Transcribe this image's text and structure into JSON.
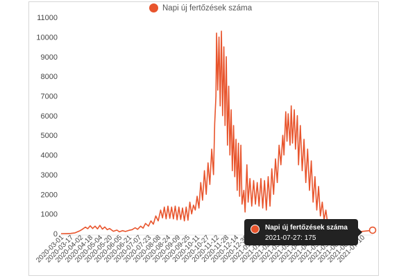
{
  "chart_data": {
    "type": "line",
    "legend": "top",
    "grid": false,
    "series": [
      {
        "name": "Napi új fertőzések száma",
        "color": "#e8542c",
        "points": [
          [
            "2020-03-01",
            0
          ],
          [
            "2020-03-10",
            5
          ],
          [
            "2020-03-17",
            10
          ],
          [
            "2020-03-24",
            40
          ],
          [
            "2020-03-31",
            130
          ],
          [
            "2020-04-04",
            200
          ],
          [
            "2020-04-10",
            330
          ],
          [
            "2020-04-14",
            250
          ],
          [
            "2020-04-18",
            400
          ],
          [
            "2020-04-22",
            260
          ],
          [
            "2020-04-26",
            380
          ],
          [
            "2020-04-30",
            240
          ],
          [
            "2020-05-04",
            420
          ],
          [
            "2020-05-08",
            230
          ],
          [
            "2020-05-12",
            340
          ],
          [
            "2020-05-16",
            200
          ],
          [
            "2020-05-20",
            260
          ],
          [
            "2020-05-26",
            120
          ],
          [
            "2020-06-01",
            180
          ],
          [
            "2020-06-05",
            90
          ],
          [
            "2020-06-10",
            150
          ],
          [
            "2020-06-15",
            110
          ],
          [
            "2020-06-21",
            170
          ],
          [
            "2020-06-26",
            200
          ],
          [
            "2020-07-01",
            300
          ],
          [
            "2020-07-05",
            220
          ],
          [
            "2020-07-10",
            380
          ],
          [
            "2020-07-14",
            280
          ],
          [
            "2020-07-18",
            520
          ],
          [
            "2020-07-23",
            380
          ],
          [
            "2020-07-27",
            650
          ],
          [
            "2020-07-31",
            480
          ],
          [
            "2020-08-04",
            900
          ],
          [
            "2020-08-08",
            650
          ],
          [
            "2020-08-12",
            1200
          ],
          [
            "2020-08-15",
            800
          ],
          [
            "2020-08-18",
            1350
          ],
          [
            "2020-08-21",
            750
          ],
          [
            "2020-08-24",
            1400
          ],
          [
            "2020-08-27",
            780
          ],
          [
            "2020-08-30",
            1350
          ],
          [
            "2020-09-02",
            750
          ],
          [
            "2020-09-05",
            1400
          ],
          [
            "2020-09-08",
            700
          ],
          [
            "2020-09-11",
            1350
          ],
          [
            "2020-09-14",
            720
          ],
          [
            "2020-09-17",
            1300
          ],
          [
            "2020-09-20",
            650
          ],
          [
            "2020-09-23",
            1350
          ],
          [
            "2020-09-26",
            680
          ],
          [
            "2020-09-29",
            1600
          ],
          [
            "2020-10-02",
            1000
          ],
          [
            "2020-10-05",
            1450
          ],
          [
            "2020-10-08",
            1200
          ],
          [
            "2020-10-11",
            1900
          ],
          [
            "2020-10-14",
            1300
          ],
          [
            "2020-10-17",
            2600
          ],
          [
            "2020-10-20",
            1700
          ],
          [
            "2020-10-23",
            3200
          ],
          [
            "2020-10-26",
            2000
          ],
          [
            "2020-10-29",
            3600
          ],
          [
            "2020-11-01",
            2500
          ],
          [
            "2020-11-04",
            4300
          ],
          [
            "2020-11-07",
            3000
          ],
          [
            "2020-11-09",
            5600
          ],
          [
            "2020-11-11",
            7000
          ],
          [
            "2020-11-12",
            10200
          ],
          [
            "2020-11-14",
            7300
          ],
          [
            "2020-11-16",
            10000
          ],
          [
            "2020-11-18",
            6500
          ],
          [
            "2020-11-20",
            10300
          ],
          [
            "2020-11-22",
            6000
          ],
          [
            "2020-11-24",
            9500
          ],
          [
            "2020-11-26",
            5500
          ],
          [
            "2020-11-28",
            9000
          ],
          [
            "2020-11-30",
            4500
          ],
          [
            "2020-12-02",
            7500
          ],
          [
            "2020-12-04",
            4000
          ],
          [
            "2020-12-06",
            6300
          ],
          [
            "2020-12-08",
            3200
          ],
          [
            "2020-12-10",
            5500
          ],
          [
            "2020-12-12",
            2900
          ],
          [
            "2020-12-14",
            4800
          ],
          [
            "2020-12-16",
            2200
          ],
          [
            "2020-12-18",
            4600
          ],
          [
            "2020-12-20",
            1900
          ],
          [
            "2020-12-22",
            4500
          ],
          [
            "2020-12-24",
            1500
          ],
          [
            "2020-12-27",
            2200
          ],
          [
            "2020-12-29",
            1100
          ],
          [
            "2021-01-01",
            3500
          ],
          [
            "2021-01-03",
            1600
          ],
          [
            "2021-01-06",
            2800
          ],
          [
            "2021-01-09",
            1400
          ],
          [
            "2021-01-12",
            2700
          ],
          [
            "2021-01-15",
            1500
          ],
          [
            "2021-01-18",
            2600
          ],
          [
            "2021-01-21",
            1400
          ],
          [
            "2021-01-24",
            2800
          ],
          [
            "2021-01-27",
            1300
          ],
          [
            "2021-01-30",
            2700
          ],
          [
            "2021-02-02",
            1200
          ],
          [
            "2021-02-05",
            2900
          ],
          [
            "2021-02-08",
            1400
          ],
          [
            "2021-02-11",
            3300
          ],
          [
            "2021-02-14",
            2000
          ],
          [
            "2021-02-17",
            3800
          ],
          [
            "2021-02-20",
            2600
          ],
          [
            "2021-02-23",
            4500
          ],
          [
            "2021-02-26",
            3500
          ],
          [
            "2021-03-01",
            5000
          ],
          [
            "2021-03-03",
            4000
          ],
          [
            "2021-03-06",
            6200
          ],
          [
            "2021-03-08",
            4700
          ],
          [
            "2021-03-10",
            6100
          ],
          [
            "2021-03-13",
            4500
          ],
          [
            "2021-03-15",
            6500
          ],
          [
            "2021-03-17",
            4600
          ],
          [
            "2021-03-20",
            6300
          ],
          [
            "2021-03-22",
            4300
          ],
          [
            "2021-03-25",
            6000
          ],
          [
            "2021-03-27",
            3500
          ],
          [
            "2021-03-30",
            5500
          ],
          [
            "2021-04-02",
            3200
          ],
          [
            "2021-04-05",
            4800
          ],
          [
            "2021-04-08",
            2600
          ],
          [
            "2021-04-11",
            4300
          ],
          [
            "2021-04-14",
            2200
          ],
          [
            "2021-04-17",
            3700
          ],
          [
            "2021-04-20",
            1600
          ],
          [
            "2021-04-23",
            2900
          ],
          [
            "2021-04-26",
            1200
          ],
          [
            "2021-04-29",
            2400
          ],
          [
            "2021-05-02",
            900
          ],
          [
            "2021-05-05",
            1600
          ],
          [
            "2021-05-08",
            700
          ],
          [
            "2021-05-11",
            1200
          ],
          [
            "2021-05-14",
            500
          ],
          [
            "2021-05-17",
            700
          ],
          [
            "2021-05-20",
            300
          ],
          [
            "2021-05-24",
            250
          ],
          [
            "2021-05-28",
            150
          ],
          [
            "2021-06-03",
            100
          ],
          [
            "2021-06-10",
            80
          ],
          [
            "2021-06-17",
            60
          ],
          [
            "2021-06-24",
            70
          ],
          [
            "2021-07-01",
            90
          ],
          [
            "2021-07-08",
            110
          ],
          [
            "2021-07-15",
            130
          ],
          [
            "2021-07-22",
            150
          ],
          [
            "2021-07-27",
            175
          ]
        ]
      }
    ],
    "y_ticks": [
      0,
      1000,
      2000,
      3000,
      4000,
      5000,
      6000,
      7000,
      8000,
      9000,
      10000,
      11000
    ],
    "y_tick_labels": [
      "0",
      "1000",
      "2000",
      "3000",
      "4000",
      "5000",
      "6000",
      "7000",
      "8000",
      "9000",
      "10000",
      "11000"
    ],
    "ylim": [
      0,
      11500
    ],
    "x_range": [
      "2020-03-01",
      "2021-07-27"
    ],
    "x_tick_labels": [
      "2020-03-01",
      "2020-03-17",
      "2020-04-02",
      "2020-04-18",
      "2020-05-04",
      "2020-05-20",
      "2020-06-05",
      "2020-06-21",
      "2020-07-07",
      "2020-07-23",
      "2020-08-08",
      "2020-08-24",
      "2020-09-09",
      "2020-09-25",
      "2020-10-11",
      "2020-10-27",
      "2020-11-12",
      "2020-11-28",
      "2020-12-14",
      "2020-12-30",
      "2021-01-15",
      "2021-01-31",
      "2021-02-16",
      "2021-03-04",
      "2021-03-20",
      "2021-04-05",
      "2021-04-21",
      "2021-05-07",
      "2021-05-23",
      "2021-06-08",
      "2021-06-24",
      "2021-07-10"
    ],
    "tooltip": {
      "series_name": "Napi új fertőzések száma",
      "text": "2021-07-27: 175",
      "date": "2021-07-27",
      "value": 175
    }
  }
}
